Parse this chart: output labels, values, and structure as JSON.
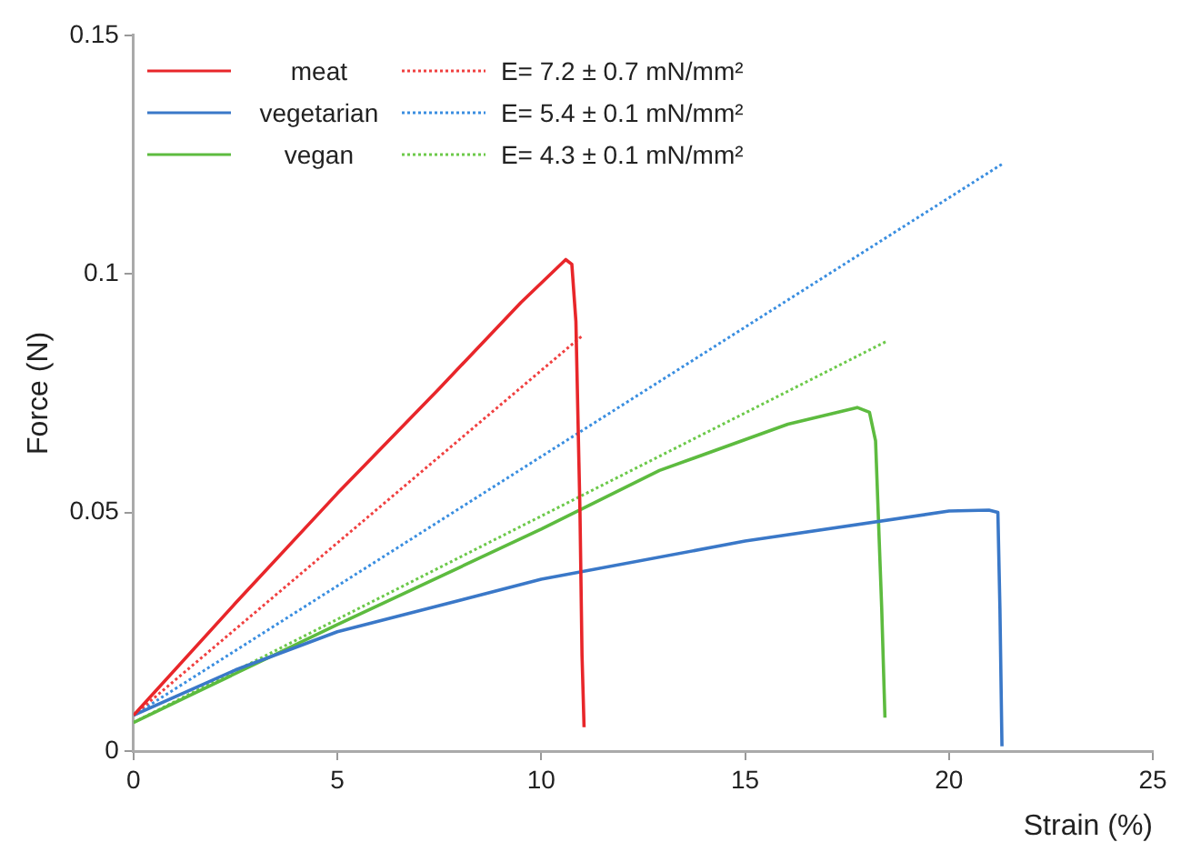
{
  "chart_data": {
    "type": "line",
    "xlabel": "Strain (%)",
    "ylabel": "Force (N)",
    "xlim": [
      0,
      25
    ],
    "xticks": [
      0,
      5,
      10,
      15,
      20,
      25
    ],
    "ylim": [
      0,
      0.15
    ],
    "yticks": [
      0,
      0.05,
      0.1,
      0.15
    ],
    "grid": false,
    "legend": "top left",
    "marker": "none",
    "series": [
      {
        "name": "meat",
        "color": "#e8262a",
        "line_style": "solid",
        "x": [
          0,
          2.5,
          5,
          7.5,
          9.5,
          10.6,
          10.75,
          10.85,
          10.95,
          11.0,
          11.05
        ],
        "values": [
          0.0075,
          0.031,
          0.054,
          0.076,
          0.094,
          0.103,
          0.102,
          0.09,
          0.05,
          0.02,
          0.005
        ]
      },
      {
        "name": "vegetarian",
        "color": "#3a78c8",
        "line_style": "solid",
        "x": [
          0,
          2.5,
          5,
          10,
          15,
          20,
          20.98,
          21.2,
          21.25,
          21.3
        ],
        "values": [
          0.0075,
          0.017,
          0.025,
          0.036,
          0.044,
          0.0503,
          0.0505,
          0.05,
          0.03,
          0.001
        ]
      },
      {
        "name": "vegan",
        "color": "#5dbb3f",
        "line_style": "solid",
        "x": [
          0,
          5,
          10,
          12.9,
          16.05,
          17.75,
          18.05,
          18.2,
          18.35,
          18.43
        ],
        "values": [
          0.006,
          0.0265,
          0.0465,
          0.0588,
          0.0685,
          0.072,
          0.071,
          0.065,
          0.03,
          0.007
        ]
      },
      {
        "name": "E= 7.2 ± 0.7 mN/mm²",
        "color": "#f04040",
        "line_style": "dotted",
        "x": [
          0,
          11.0
        ],
        "values": [
          0.0075,
          0.087
        ]
      },
      {
        "name": "E= 5.4 ± 0.1 mN/mm²",
        "color": "#3a8ee0",
        "line_style": "dotted",
        "x": [
          0,
          21.3
        ],
        "values": [
          0.0075,
          0.123
        ]
      },
      {
        "name": "E= 4.3 ± 0.1 mN/mm²",
        "color": "#6cc94a",
        "line_style": "dotted",
        "x": [
          0,
          18.5
        ],
        "values": [
          0.006,
          0.086
        ]
      }
    ]
  }
}
